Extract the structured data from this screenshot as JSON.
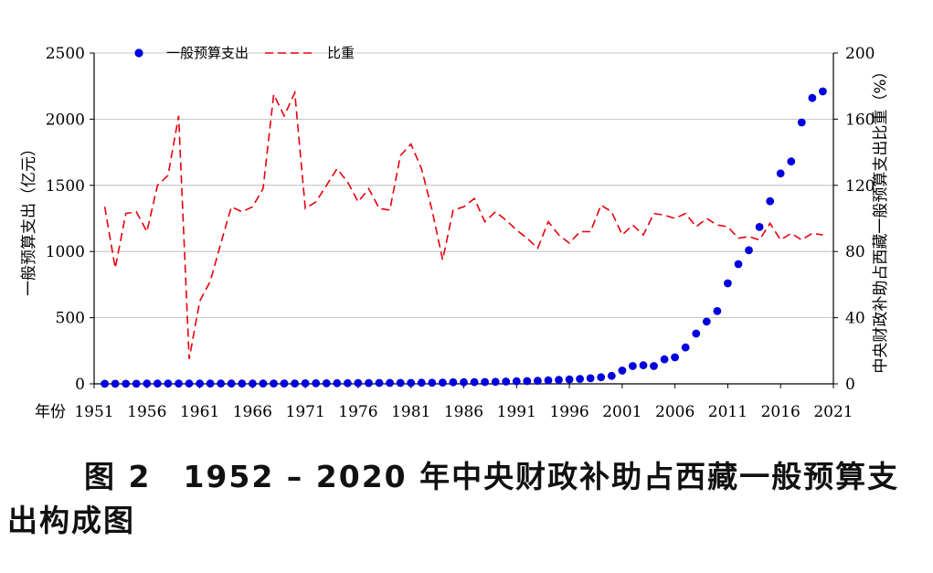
{
  "caption": {
    "figure_label": "图 2",
    "text": "1952 – 2020 年中央财政补助占西藏一般预算支出构成图"
  },
  "chart_data": {
    "type": "scatter+line",
    "ylabel_left": "一般预算支出（亿元）",
    "ylabel_right": "中央财政补助占西藏一般预算支出比重（%）",
    "xlabel": "年份",
    "x_ticks": [
      1951,
      1956,
      1961,
      1966,
      1971,
      1976,
      1981,
      1986,
      1991,
      1996,
      2001,
      2006,
      2011,
      2016,
      2021
    ],
    "y_left_ticks": [
      0,
      500,
      1000,
      1500,
      2000,
      2500
    ],
    "y_right_ticks": [
      0,
      40,
      80,
      120,
      160,
      200
    ],
    "ylim_left": [
      0,
      2500
    ],
    "ylim_right": [
      0,
      200
    ],
    "xlim": [
      1951,
      2021
    ],
    "grid": "horizontal",
    "legend": "top-left",
    "series": [
      {
        "name": "一般预算支出",
        "axis": "left",
        "style": "markers",
        "color": "#0000dd",
        "x": [
          1952,
          1953,
          1954,
          1955,
          1956,
          1957,
          1958,
          1959,
          1960,
          1961,
          1962,
          1963,
          1964,
          1965,
          1966,
          1967,
          1968,
          1969,
          1970,
          1971,
          1972,
          1973,
          1974,
          1975,
          1976,
          1977,
          1978,
          1979,
          1980,
          1981,
          1982,
          1983,
          1984,
          1985,
          1986,
          1987,
          1988,
          1989,
          1990,
          1991,
          1992,
          1993,
          1994,
          1995,
          1996,
          1997,
          1998,
          1999,
          2000,
          2001,
          2002,
          2003,
          2004,
          2005,
          2006,
          2007,
          2008,
          2009,
          2010,
          2011,
          2012,
          2013,
          2014,
          2015,
          2016,
          2017,
          2018,
          2019,
          2020
        ],
        "values": [
          1,
          1,
          1,
          1,
          2,
          2,
          2,
          2,
          2,
          2,
          2,
          2,
          2,
          2,
          2,
          3,
          3,
          3,
          3,
          4,
          4,
          4,
          5,
          5,
          6,
          6,
          7,
          7,
          7,
          7,
          8,
          8,
          10,
          12,
          12,
          13,
          14,
          15,
          17,
          19,
          21,
          23,
          26,
          30,
          33,
          37,
          42,
          50,
          60,
          100,
          135,
          140,
          135,
          185,
          200,
          275,
          380,
          470,
          550,
          760,
          905,
          1010,
          1185,
          1380,
          1590,
          1680,
          1975,
          2160,
          2210
        ]
      },
      {
        "name": "比重",
        "axis": "right",
        "style": "dashed",
        "color": "#e8000b",
        "x": [
          1952,
          1953,
          1954,
          1955,
          1956,
          1957,
          1958,
          1959,
          1960,
          1961,
          1962,
          1963,
          1964,
          1965,
          1966,
          1967,
          1968,
          1969,
          1970,
          1971,
          1972,
          1973,
          1974,
          1975,
          1976,
          1977,
          1978,
          1979,
          1980,
          1981,
          1982,
          1983,
          1984,
          1985,
          1986,
          1987,
          1988,
          1989,
          1990,
          1991,
          1992,
          1993,
          1994,
          1995,
          1996,
          1997,
          1998,
          1999,
          2000,
          2001,
          2002,
          2003,
          2004,
          2005,
          2006,
          2007,
          2008,
          2009,
          2010,
          2011,
          2012,
          2013,
          2014,
          2015,
          2016,
          2017,
          2018,
          2019,
          2020
        ],
        "values": [
          107,
          70,
          103,
          104,
          92,
          120,
          126,
          162,
          15,
          50,
          62,
          85,
          107,
          104,
          107,
          118,
          175,
          162,
          176,
          106,
          110,
          120,
          130,
          122,
          110,
          118,
          106,
          105,
          138,
          145,
          130,
          105,
          75,
          105,
          107,
          112,
          98,
          104,
          99,
          93,
          88,
          82,
          98,
          90,
          85,
          92,
          92,
          108,
          104,
          90,
          96,
          90,
          103,
          102,
          100,
          103,
          95,
          100,
          96,
          95,
          88,
          89,
          87,
          97,
          87,
          91,
          87,
          91,
          90
        ]
      }
    ],
    "extra_right_tick": 2021
  }
}
